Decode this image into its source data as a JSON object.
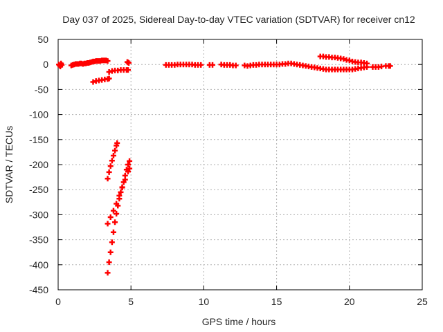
{
  "chart_data": {
    "type": "scatter",
    "title": "Day 037 of 2025, Sidereal Day-to-day VTEC variation (SDTVAR) for receiver cn12",
    "xlabel": "GPS time / hours",
    "ylabel": "SDTVAR / TECUs",
    "xlim": [
      0,
      25
    ],
    "ylim": [
      -450,
      50
    ],
    "xticks": [
      0,
      5,
      10,
      15,
      20,
      25
    ],
    "yticks": [
      50,
      0,
      -50,
      -100,
      -150,
      -200,
      -250,
      -300,
      -350,
      -400,
      -450
    ],
    "grid": true,
    "legend": "none",
    "marker_color": "#ff0000",
    "series": [
      {
        "values": [
          [
            0.05,
            0
          ],
          [
            0.1,
            -2
          ],
          [
            0.15,
            -4
          ],
          [
            0.2,
            2
          ],
          [
            0.25,
            -1
          ],
          [
            0.9,
            -2
          ],
          [
            1.0,
            -1
          ],
          [
            1.1,
            0
          ],
          [
            1.2,
            1
          ],
          [
            1.3,
            1
          ],
          [
            1.4,
            1
          ],
          [
            1.5,
            2
          ],
          [
            1.6,
            2
          ],
          [
            1.7,
            1
          ],
          [
            1.8,
            2
          ],
          [
            1.9,
            2
          ],
          [
            2.0,
            3
          ],
          [
            2.1,
            3
          ],
          [
            2.2,
            4
          ],
          [
            2.3,
            5
          ],
          [
            2.4,
            6
          ],
          [
            2.5,
            6
          ],
          [
            2.6,
            7
          ],
          [
            2.7,
            7
          ],
          [
            2.8,
            7
          ],
          [
            2.9,
            7
          ],
          [
            3.0,
            8
          ],
          [
            3.1,
            8
          ],
          [
            3.2,
            8
          ],
          [
            3.3,
            8
          ],
          [
            3.4,
            7
          ],
          [
            2.4,
            -35
          ],
          [
            2.6,
            -33
          ],
          [
            2.8,
            -32
          ],
          [
            3.0,
            -31
          ],
          [
            3.2,
            -30
          ],
          [
            3.4,
            -29
          ],
          [
            3.5,
            -28
          ],
          [
            3.5,
            -15
          ],
          [
            3.7,
            -13
          ],
          [
            3.9,
            -12
          ],
          [
            4.1,
            -12
          ],
          [
            4.3,
            -11
          ],
          [
            4.5,
            -11
          ],
          [
            4.7,
            -11
          ],
          [
            4.8,
            -11
          ],
          [
            4.75,
            5
          ],
          [
            4.8,
            4
          ],
          [
            4.85,
            3
          ],
          [
            3.4,
            -228
          ],
          [
            3.5,
            -215
          ],
          [
            3.6,
            -203
          ],
          [
            3.7,
            -192
          ],
          [
            3.8,
            -182
          ],
          [
            3.9,
            -172
          ],
          [
            4.0,
            -162
          ],
          [
            4.05,
            -157
          ],
          [
            3.4,
            -318
          ],
          [
            3.6,
            -305
          ],
          [
            3.8,
            -292
          ],
          [
            4.0,
            -278
          ],
          [
            4.2,
            -262
          ],
          [
            4.4,
            -246
          ],
          [
            4.6,
            -230
          ],
          [
            4.8,
            -214
          ],
          [
            4.9,
            -208
          ],
          [
            3.4,
            -416
          ],
          [
            3.5,
            -395
          ],
          [
            3.6,
            -375
          ],
          [
            3.7,
            -355
          ],
          [
            3.8,
            -335
          ],
          [
            3.9,
            -315
          ],
          [
            4.0,
            -298
          ],
          [
            4.1,
            -282
          ],
          [
            4.2,
            -268
          ],
          [
            4.3,
            -255
          ],
          [
            4.4,
            -245
          ],
          [
            4.5,
            -235
          ],
          [
            4.6,
            -222
          ],
          [
            4.7,
            -210
          ],
          [
            4.8,
            -200
          ],
          [
            4.9,
            -193
          ],
          [
            7.4,
            -1
          ],
          [
            7.6,
            -1
          ],
          [
            7.8,
            -1
          ],
          [
            8.0,
            -1
          ],
          [
            8.2,
            0
          ],
          [
            8.4,
            0
          ],
          [
            8.6,
            0
          ],
          [
            8.8,
            0
          ],
          [
            9.0,
            0
          ],
          [
            9.2,
            0
          ],
          [
            9.4,
            -1
          ],
          [
            9.6,
            -1
          ],
          [
            9.8,
            -1
          ],
          [
            10.4,
            -1
          ],
          [
            10.6,
            -1
          ],
          [
            11.2,
            0
          ],
          [
            11.4,
            -1
          ],
          [
            11.6,
            -1
          ],
          [
            11.8,
            -1
          ],
          [
            12.0,
            -2
          ],
          [
            12.2,
            -2
          ],
          [
            12.8,
            -2
          ],
          [
            13.0,
            -3
          ],
          [
            13.2,
            -2
          ],
          [
            13.4,
            -1
          ],
          [
            13.6,
            -1
          ],
          [
            13.8,
            0
          ],
          [
            14.0,
            0
          ],
          [
            14.2,
            0
          ],
          [
            14.4,
            0
          ],
          [
            14.6,
            0
          ],
          [
            14.8,
            0
          ],
          [
            15.0,
            0
          ],
          [
            15.2,
            0
          ],
          [
            15.4,
            1
          ],
          [
            15.6,
            1
          ],
          [
            15.8,
            2
          ],
          [
            16.0,
            2
          ],
          [
            16.2,
            1
          ],
          [
            16.4,
            0
          ],
          [
            16.6,
            -1
          ],
          [
            16.8,
            -2
          ],
          [
            17.0,
            -3
          ],
          [
            17.2,
            -4
          ],
          [
            17.4,
            -5
          ],
          [
            17.6,
            -6
          ],
          [
            17.8,
            -7
          ],
          [
            18.0,
            -8
          ],
          [
            18.2,
            -9
          ],
          [
            18.4,
            -10
          ],
          [
            18.6,
            -10
          ],
          [
            18.8,
            -10
          ],
          [
            19.0,
            -10
          ],
          [
            19.2,
            -10
          ],
          [
            19.4,
            -10
          ],
          [
            19.6,
            -10
          ],
          [
            19.8,
            -10
          ],
          [
            20.0,
            -10
          ],
          [
            20.2,
            -10
          ],
          [
            20.4,
            -9
          ],
          [
            20.6,
            -8
          ],
          [
            20.8,
            -7
          ],
          [
            21.0,
            -6
          ],
          [
            21.2,
            -5
          ],
          [
            18.0,
            16
          ],
          [
            18.2,
            16
          ],
          [
            18.4,
            15
          ],
          [
            18.6,
            15
          ],
          [
            18.8,
            14
          ],
          [
            19.0,
            14
          ],
          [
            19.2,
            13
          ],
          [
            19.4,
            12
          ],
          [
            19.6,
            11
          ],
          [
            19.8,
            9
          ],
          [
            20.0,
            8
          ],
          [
            20.2,
            6
          ],
          [
            20.4,
            5
          ],
          [
            20.6,
            4
          ],
          [
            20.8,
            4
          ],
          [
            21.0,
            3
          ],
          [
            21.2,
            2
          ],
          [
            21.6,
            -5
          ],
          [
            21.8,
            -5
          ],
          [
            22.0,
            -5
          ],
          [
            22.2,
            -4
          ],
          [
            22.5,
            -3
          ],
          [
            22.7,
            -3
          ],
          [
            22.8,
            -3
          ]
        ]
      }
    ]
  }
}
